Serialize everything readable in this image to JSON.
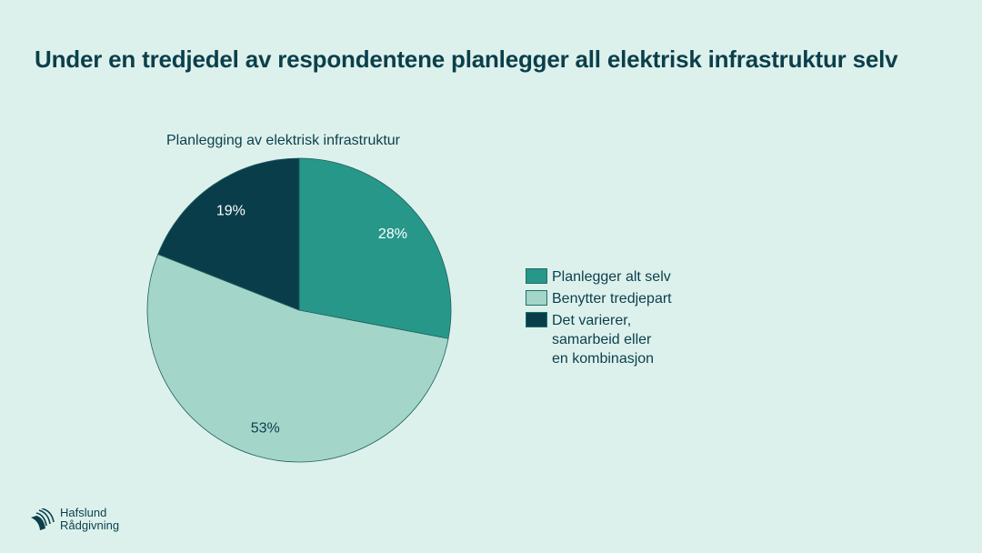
{
  "title": "Under en tredjedel av respondentene planlegger all elektrisk infrastruktur selv",
  "brand": {
    "line1": "Hafslund",
    "line2": "Rådgivning"
  },
  "chart_data": {
    "type": "pie",
    "title": "Planlegging av elektrisk infrastruktur",
    "start": "top",
    "direction": "clockwise",
    "legend_position": "right",
    "slices": [
      {
        "name": "Planlegger alt selv",
        "value": 28,
        "label": "28%",
        "color": "#27978a",
        "label_color": "#ffffff"
      },
      {
        "name": "Benytter tredjepart",
        "value": 53,
        "label": "53%",
        "color": "#a3d5c9",
        "label_color": "#0b3f4b"
      },
      {
        "name": "Det varierer,\nsamarbeid eller\nen kombinasjon",
        "value": 19,
        "label": "19%",
        "color": "#0a3d4a",
        "label_color": "#ffffff"
      }
    ]
  }
}
